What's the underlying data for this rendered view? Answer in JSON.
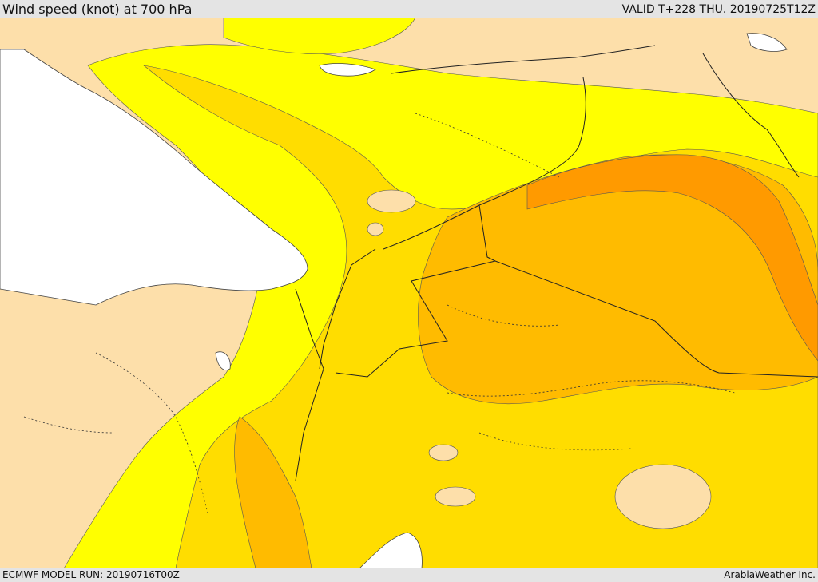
{
  "header": {
    "title": "Wind speed (knot) at 700 hPa",
    "valid": "VALID T+228 THU. 20190725T12Z"
  },
  "footer": {
    "model_run": "ECMWF MODEL RUN: 20190716T00Z",
    "credit": "ArabiaWeather Inc."
  },
  "map": {
    "colors": {
      "sea": "#ffffff",
      "land_calm": "#fddfaa",
      "band_1": "#ffff00",
      "band_2": "#ffdd00",
      "band_3": "#ffbb00",
      "band_4": "#ff9a00",
      "contour": "#333333",
      "border": "#222222"
    }
  }
}
